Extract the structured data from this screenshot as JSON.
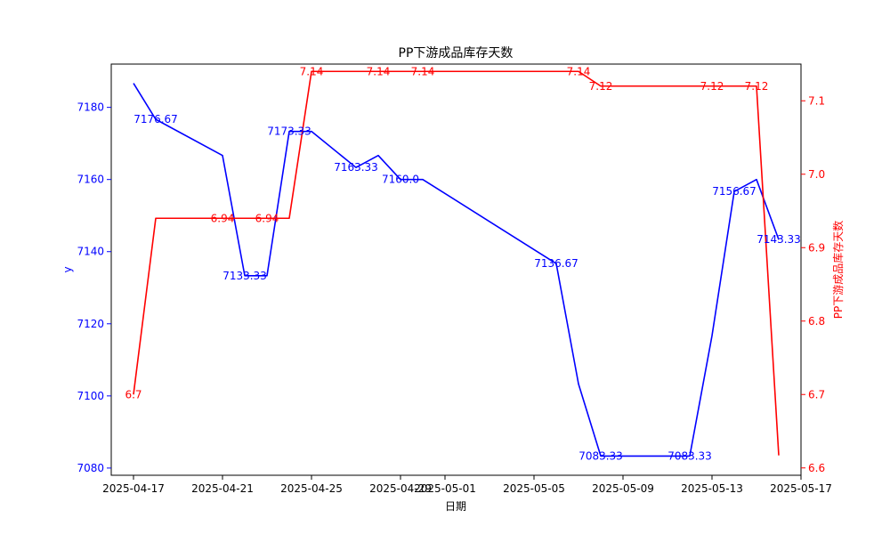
{
  "chart_data": {
    "type": "line",
    "title": "PP下游成品库存天数",
    "xlabel": "日期",
    "ylabel_left": "y",
    "ylabel_right": "PP下游成品库存天数",
    "x_ticks": [
      "2025-04-17",
      "2025-04-21",
      "2025-04-25",
      "2025-04-29",
      "2025-05-01",
      "2025-05-05",
      "2025-05-09",
      "2025-05-13",
      "2025-05-17"
    ],
    "y_left_ticks": [
      "7080",
      "7100",
      "7120",
      "7140",
      "7160",
      "7180"
    ],
    "y_right_ticks": [
      "6.6",
      "6.7",
      "6.8",
      "6.9",
      "7.0",
      "7.1"
    ],
    "xlim": [
      "2025-04-16",
      "2025-05-17"
    ],
    "ylim_left": [
      7078,
      7192
    ],
    "ylim_right": [
      6.59,
      7.15
    ],
    "grid": false,
    "colors": {
      "left": "#0000ff",
      "right": "#ff0000"
    },
    "series": [
      {
        "axis": "left",
        "color": "#0000ff",
        "points": [
          {
            "x": "2025-04-17",
            "y": 7186.67
          },
          {
            "x": "2025-04-18",
            "y": 7176.67,
            "label": "7176.67"
          },
          {
            "x": "2025-04-21",
            "y": 7166.67
          },
          {
            "x": "2025-04-22",
            "y": 7133.33,
            "label": "7133.33"
          },
          {
            "x": "2025-04-23",
            "y": 7133.33
          },
          {
            "x": "2025-04-24",
            "y": 7173.33,
            "label": "7173.33"
          },
          {
            "x": "2025-04-25",
            "y": 7173.33
          },
          {
            "x": "2025-04-27",
            "y": 7163.33,
            "label": "7163.33"
          },
          {
            "x": "2025-04-28",
            "y": 7166.67
          },
          {
            "x": "2025-04-29",
            "y": 7160.0,
            "label": "7160.0"
          },
          {
            "x": "2025-04-30",
            "y": 7160.0
          },
          {
            "x": "2025-05-06",
            "y": 7136.67,
            "label": "7136.67"
          },
          {
            "x": "2025-05-07",
            "y": 7103.33
          },
          {
            "x": "2025-05-08",
            "y": 7083.33,
            "label": "7083.33"
          },
          {
            "x": "2025-05-12",
            "y": 7083.33,
            "label": "7083.33"
          },
          {
            "x": "2025-05-13",
            "y": 7116.67
          },
          {
            "x": "2025-05-14",
            "y": 7156.67,
            "label": "7156.67"
          },
          {
            "x": "2025-05-15",
            "y": 7160.0
          },
          {
            "x": "2025-05-16",
            "y": 7143.33,
            "label": "7143.33"
          }
        ]
      },
      {
        "axis": "right",
        "color": "#ff0000",
        "points": [
          {
            "x": "2025-04-17",
            "y": 6.7,
            "label": "6.7"
          },
          {
            "x": "2025-04-18",
            "y": 6.94
          },
          {
            "x": "2025-04-21",
            "y": 6.94,
            "label": "6.94"
          },
          {
            "x": "2025-04-23",
            "y": 6.94,
            "label": "6.94"
          },
          {
            "x": "2025-04-24",
            "y": 6.94
          },
          {
            "x": "2025-04-25",
            "y": 7.14,
            "label": "7.14"
          },
          {
            "x": "2025-04-28",
            "y": 7.14,
            "label": "7.14"
          },
          {
            "x": "2025-04-30",
            "y": 7.14,
            "label": "7.14"
          },
          {
            "x": "2025-05-07",
            "y": 7.14,
            "label": "7.14"
          },
          {
            "x": "2025-05-08",
            "y": 7.12,
            "label": "7.12"
          },
          {
            "x": "2025-05-13",
            "y": 7.12,
            "label": "7.12"
          },
          {
            "x": "2025-05-15",
            "y": 7.12,
            "label": "7.12"
          },
          {
            "x": "2025-05-16",
            "y": 6.617
          }
        ]
      }
    ]
  }
}
